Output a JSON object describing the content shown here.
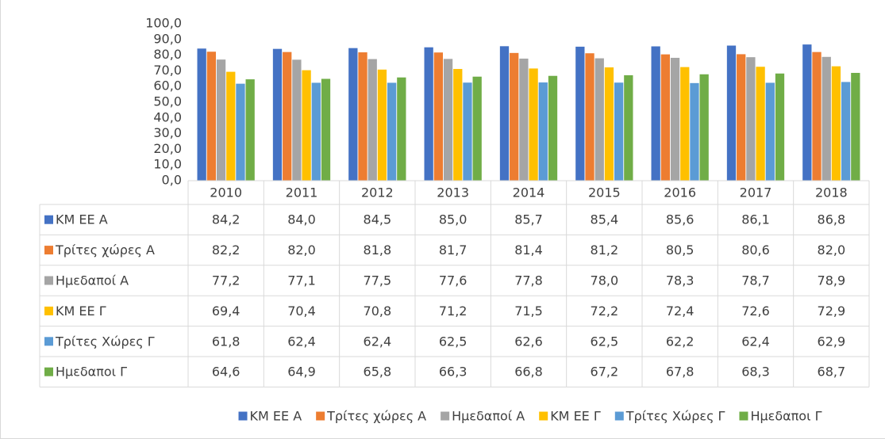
{
  "chart_data": {
    "type": "bar",
    "categories": [
      "2010",
      "2011",
      "2012",
      "2013",
      "2014",
      "2015",
      "2016",
      "2017",
      "2018"
    ],
    "ylim": [
      0,
      100
    ],
    "yticks": [
      {
        "value": 0,
        "label": "0,0"
      },
      {
        "value": 10,
        "label": "10,0"
      },
      {
        "value": 20,
        "label": "20,0"
      },
      {
        "value": 30,
        "label": "30,0"
      },
      {
        "value": 40,
        "label": "40,0"
      },
      {
        "value": 50,
        "label": "50,0"
      },
      {
        "value": 60,
        "label": "60,0"
      },
      {
        "value": 70,
        "label": "70,0"
      },
      {
        "value": 80,
        "label": "80,0"
      },
      {
        "value": 90,
        "label": "90,0"
      },
      {
        "value": 100,
        "label": "100,0"
      }
    ],
    "grid": false,
    "legend": "bottom",
    "series": [
      {
        "name": "ΚΜ ΕΕ Α",
        "color": "#4472c4",
        "values": [
          84.2,
          84.0,
          84.5,
          85.0,
          85.7,
          85.4,
          85.6,
          86.1,
          86.8
        ],
        "value_labels": [
          "84,2",
          "84,0",
          "84,5",
          "85,0",
          "85,7",
          "85,4",
          "85,6",
          "86,1",
          "86,8"
        ]
      },
      {
        "name": "Τρίτες χώρες Α",
        "color": "#ed7d31",
        "values": [
          82.2,
          82.0,
          81.8,
          81.7,
          81.4,
          81.2,
          80.5,
          80.6,
          82.0
        ],
        "value_labels": [
          "82,2",
          "82,0",
          "81,8",
          "81,7",
          "81,4",
          "81,2",
          "80,5",
          "80,6",
          "82,0"
        ]
      },
      {
        "name": "Ημεδαποί Α",
        "color": "#a5a5a5",
        "values": [
          77.2,
          77.1,
          77.5,
          77.6,
          77.8,
          78.0,
          78.3,
          78.7,
          78.9
        ],
        "value_labels": [
          "77,2",
          "77,1",
          "77,5",
          "77,6",
          "77,8",
          "78,0",
          "78,3",
          "78,7",
          "78,9"
        ]
      },
      {
        "name": "ΚΜ ΕΕ Γ",
        "color": "#ffc000",
        "values": [
          69.4,
          70.4,
          70.8,
          71.2,
          71.5,
          72.2,
          72.4,
          72.6,
          72.9
        ],
        "value_labels": [
          "69,4",
          "70,4",
          "70,8",
          "71,2",
          "71,5",
          "72,2",
          "72,4",
          "72,6",
          "72,9"
        ]
      },
      {
        "name": "Τρίτες Χώρες Γ",
        "color": "#5b9bd5",
        "values": [
          61.8,
          62.4,
          62.4,
          62.5,
          62.6,
          62.5,
          62.2,
          62.4,
          62.9
        ],
        "value_labels": [
          "61,8",
          "62,4",
          "62,4",
          "62,5",
          "62,6",
          "62,5",
          "62,2",
          "62,4",
          "62,9"
        ]
      },
      {
        "name": "Ημεδαποι Γ",
        "color": "#70ad47",
        "values": [
          64.6,
          64.9,
          65.8,
          66.3,
          66.8,
          67.2,
          67.8,
          68.3,
          68.7
        ],
        "value_labels": [
          "64,6",
          "64,9",
          "65,8",
          "66,3",
          "66,8",
          "67,2",
          "67,8",
          "68,3",
          "68,7"
        ]
      }
    ]
  }
}
